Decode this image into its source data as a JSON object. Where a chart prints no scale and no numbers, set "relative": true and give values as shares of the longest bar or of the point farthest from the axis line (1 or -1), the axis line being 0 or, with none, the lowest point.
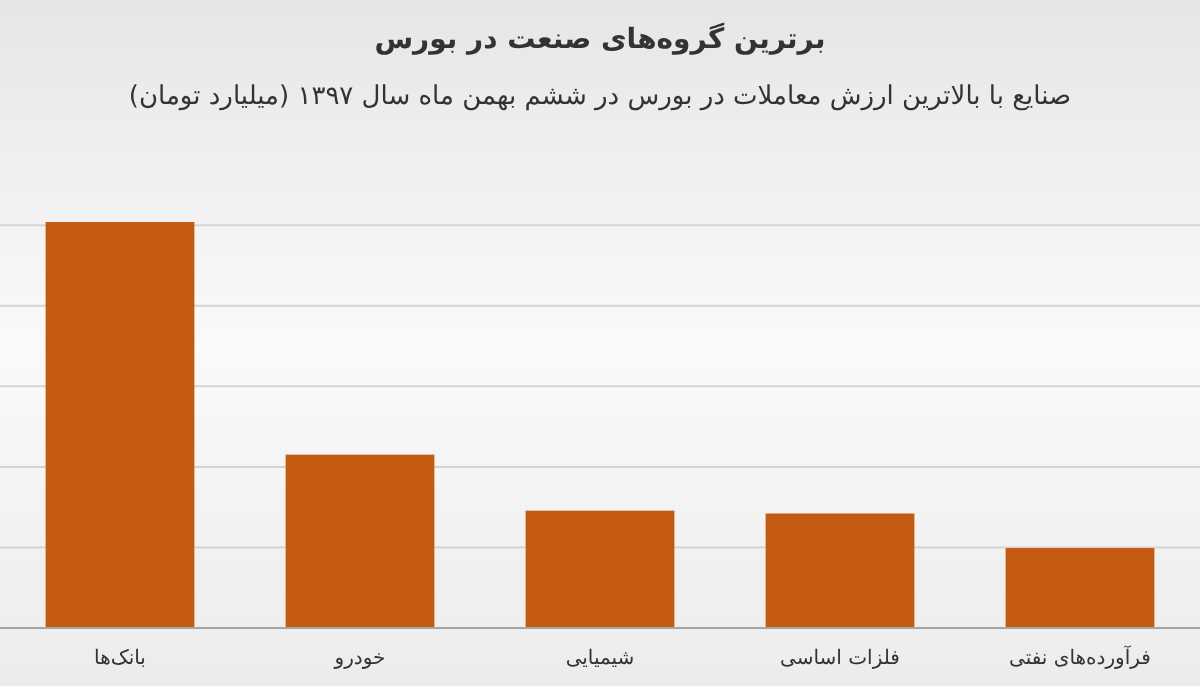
{
  "chart_data": {
    "type": "bar",
    "title": "برترین گروه‌های صنعت در بورس",
    "subtitle": "صنایع با بالاترین ارزش  معاملات در بورس در ششم بهمن ماه سال ۱۳۹۷ (میلیارد تومان)",
    "categories": [
      "بانک‌ها",
      "خودرو",
      "شیمیایی",
      "فلزات اساسی",
      "فرآورده‌های نفتی"
    ],
    "values": [
      1,
      0.427,
      0.289,
      0.282,
      0.197
    ],
    "color": "#c55a11",
    "relative": true,
    "grid": "y"
  }
}
